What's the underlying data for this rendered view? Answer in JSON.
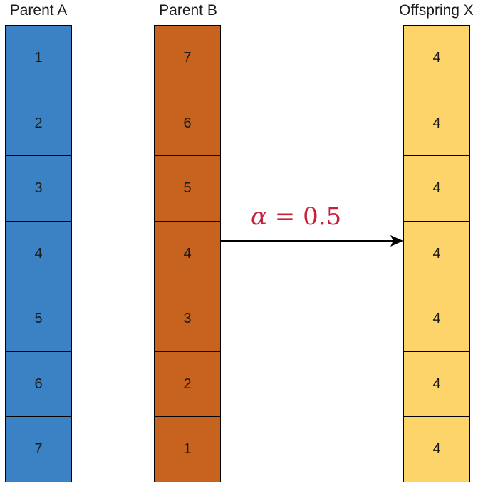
{
  "colors": {
    "parent_a": "#3b82c4",
    "parent_b": "#c8631f",
    "offspring": "#fcd46a",
    "label": "#c8203a",
    "border": "#000000"
  },
  "parent_a": {
    "title": "Parent A",
    "genes": [
      "1",
      "2",
      "3",
      "4",
      "5",
      "6",
      "7"
    ]
  },
  "parent_b": {
    "title": "Parent B",
    "genes": [
      "7",
      "6",
      "5",
      "4",
      "3",
      "2",
      "1"
    ]
  },
  "offspring_x": {
    "title": "Offspring X",
    "genes": [
      "4",
      "4",
      "4",
      "4",
      "4",
      "4",
      "4"
    ]
  },
  "crossover": {
    "symbol": "α",
    "operator": " = ",
    "value": "0.5"
  }
}
